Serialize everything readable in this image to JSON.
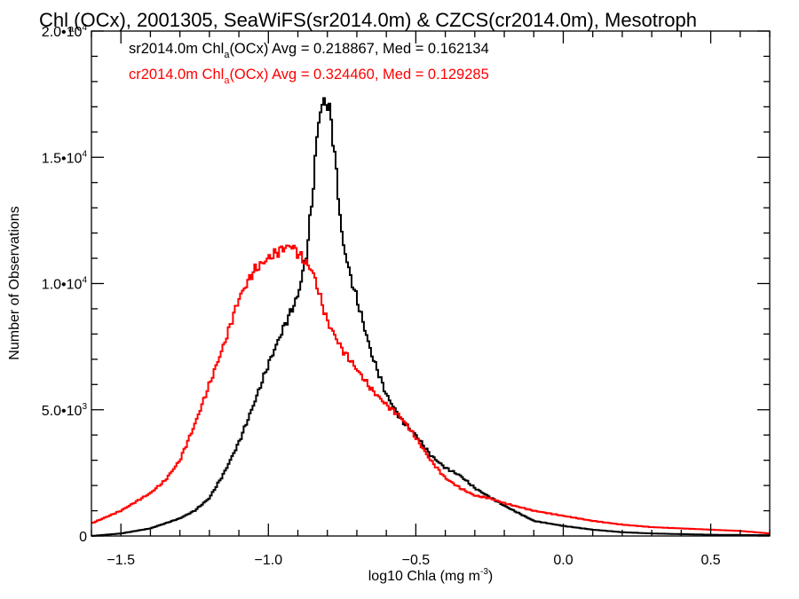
{
  "chart_data": {
    "type": "line",
    "title": {
      "pre": "Chl",
      "sub": "a",
      "post": "(OCx), 2001305, SeaWiFS(sr2014.0m) & CZCS(cr2014.0m), Mesotroph"
    },
    "xlabel": {
      "text": "log10 Chla (mg m",
      "sup": "-3",
      "close": ")"
    },
    "ylabel": "Number of Observations",
    "xlim": [
      -1.6,
      0.7
    ],
    "ylim": [
      0,
      20000
    ],
    "x_ticks": [
      {
        "value": -1.5,
        "label": "−1.5"
      },
      {
        "value": -1.0,
        "label": "−1.0"
      },
      {
        "value": -0.5,
        "label": "−0.5"
      },
      {
        "value": 0.0,
        "label": "0.0"
      },
      {
        "value": 0.5,
        "label": "0.5"
      }
    ],
    "y_ticks": [
      {
        "value": 0,
        "mant": "0",
        "exp": ""
      },
      {
        "value": 5000,
        "mant": "5.0•10",
        "exp": "3"
      },
      {
        "value": 10000,
        "mant": "1.0•10",
        "exp": "4"
      },
      {
        "value": 15000,
        "mant": "1.5•10",
        "exp": "4"
      },
      {
        "value": 20000,
        "mant": "2.0•10",
        "exp": "4"
      }
    ],
    "grid": false,
    "legend_position": "top-left",
    "series": [
      {
        "name": "sr2014.0m",
        "color": "#000000",
        "label": {
          "pre": "sr2014.0m Chl",
          "sub": "a",
          "post": "(OCx) Avg = 0.218867, Med = 0.162134"
        },
        "x": [
          -1.6,
          -1.5,
          -1.4,
          -1.3,
          -1.25,
          -1.2,
          -1.15,
          -1.1,
          -1.05,
          -1.0,
          -0.95,
          -0.9,
          -0.87,
          -0.85,
          -0.83,
          -0.81,
          -0.79,
          -0.77,
          -0.75,
          -0.72,
          -0.7,
          -0.65,
          -0.6,
          -0.55,
          -0.5,
          -0.45,
          -0.4,
          -0.35,
          -0.3,
          -0.2,
          -0.1,
          0.0,
          0.1,
          0.2,
          0.3,
          0.5,
          0.7
        ],
        "values": [
          0,
          100,
          300,
          700,
          1000,
          1500,
          2500,
          3700,
          5200,
          6800,
          8200,
          9500,
          11200,
          13500,
          16500,
          17300,
          16800,
          14500,
          11800,
          10200,
          9400,
          7200,
          5600,
          4600,
          4000,
          3200,
          2700,
          2400,
          1900,
          1200,
          600,
          400,
          250,
          150,
          100,
          50,
          30
        ]
      },
      {
        "name": "cr2014.0m",
        "color": "#ff0000",
        "label": {
          "pre": "cr2014.0m Chl",
          "sub": "a",
          "post": "(OCx) Avg = 0.324460, Med = 0.129285"
        },
        "x": [
          -1.6,
          -1.5,
          -1.4,
          -1.35,
          -1.3,
          -1.25,
          -1.2,
          -1.15,
          -1.1,
          -1.05,
          -1.0,
          -0.95,
          -0.92,
          -0.9,
          -0.85,
          -0.8,
          -0.75,
          -0.7,
          -0.65,
          -0.6,
          -0.55,
          -0.5,
          -0.45,
          -0.4,
          -0.35,
          -0.3,
          -0.25,
          -0.2,
          -0.1,
          0.0,
          0.1,
          0.2,
          0.3,
          0.4,
          0.5,
          0.6,
          0.7
        ],
        "values": [
          500,
          1000,
          1700,
          2200,
          3000,
          4400,
          6000,
          7600,
          9400,
          10500,
          11000,
          11400,
          11500,
          11200,
          10500,
          8500,
          7400,
          6600,
          5800,
          5200,
          4700,
          3900,
          3000,
          2300,
          1900,
          1600,
          1500,
          1300,
          1000,
          800,
          600,
          450,
          350,
          300,
          250,
          200,
          100
        ]
      }
    ]
  }
}
